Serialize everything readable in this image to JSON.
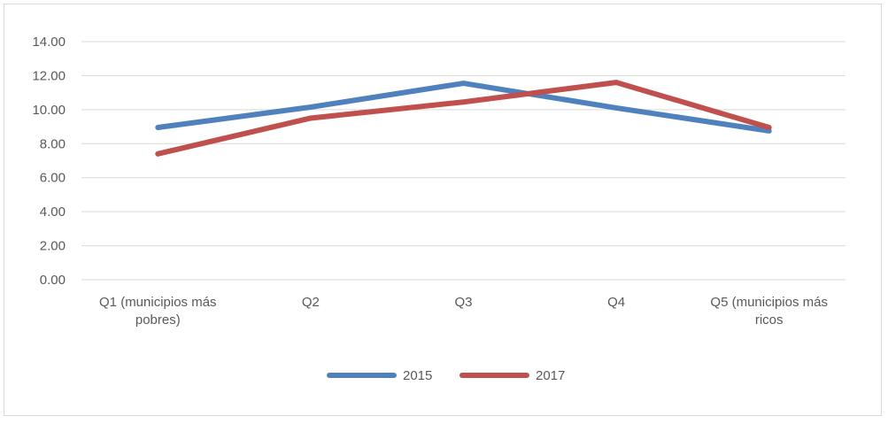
{
  "chart_data": {
    "type": "line",
    "title": "",
    "xlabel": "",
    "ylabel": "",
    "categories": [
      [
        "Q1 (municipios más",
        "pobres)"
      ],
      [
        "Q2"
      ],
      [
        "Q3"
      ],
      [
        "Q4"
      ],
      [
        "Q5 (municipios más",
        "ricos"
      ]
    ],
    "ylim": [
      0,
      14
    ],
    "yticks": [
      "0.00",
      "2.00",
      "4.00",
      "6.00",
      "8.00",
      "10.00",
      "12.00",
      "14.00"
    ],
    "grid": true,
    "legend_position": "bottom",
    "series": [
      {
        "name": "2015",
        "color": "#4f81bd",
        "values": [
          8.95,
          10.15,
          11.55,
          10.1,
          8.75
        ]
      },
      {
        "name": "2017",
        "color": "#c0504d",
        "values": [
          7.4,
          9.5,
          10.45,
          11.6,
          8.95
        ]
      }
    ]
  }
}
